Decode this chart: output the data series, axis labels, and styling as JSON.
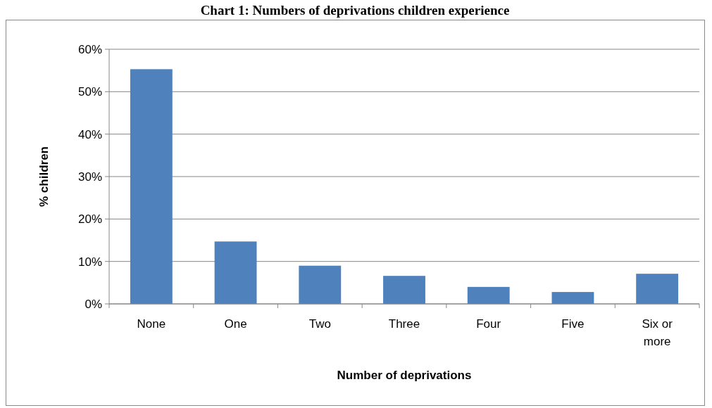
{
  "chart_data": {
    "type": "bar",
    "title": "Chart 1: Numbers of deprivations children experience",
    "xlabel": "Number of deprivations",
    "ylabel": "% children",
    "categories": [
      "None",
      "One",
      "Two",
      "Three",
      "Four",
      "Five",
      "Six or more"
    ],
    "values": [
      55.3,
      14.7,
      9,
      6.6,
      4,
      2.8,
      7.1
    ],
    "color": "#4f81bd",
    "ylim": [
      0,
      60
    ],
    "yticks": [
      {
        "value": 0,
        "label": "0%"
      },
      {
        "value": 10,
        "label": "10%"
      },
      {
        "value": 20,
        "label": "20%"
      },
      {
        "value": 30,
        "label": "30%"
      },
      {
        "value": 40,
        "label": "40%"
      },
      {
        "value": 50,
        "label": "50%"
      },
      {
        "value": 60,
        "label": "60%"
      }
    ],
    "grid": "y"
  }
}
